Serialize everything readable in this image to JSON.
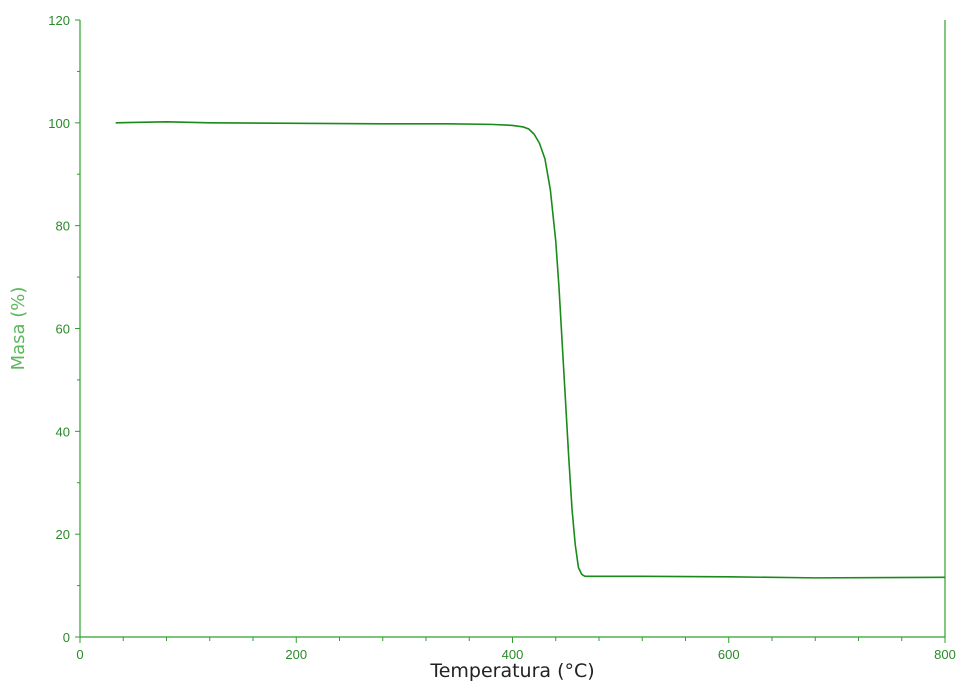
{
  "chart_data": {
    "type": "line",
    "title": "",
    "xlabel": "Temperatura (°C)",
    "ylabel": "Masa (%)",
    "xlim": [
      0,
      800
    ],
    "ylim": [
      0,
      120
    ],
    "x_ticks": [
      0,
      200,
      400,
      600,
      800
    ],
    "y_ticks": [
      0,
      20,
      40,
      60,
      80,
      100,
      120
    ],
    "grid": false,
    "legend": "none",
    "colors": {
      "line": "#1a8a1a",
      "axis": "#2ea02e",
      "tick_text": "#2a8a2a",
      "ylabel_text": "#5cb85c",
      "xlabel_text": "#222222"
    },
    "series": [
      {
        "x": [
          33,
          80,
          120,
          200,
          280,
          340,
          380,
          400,
          410,
          415,
          420,
          425,
          430,
          435,
          440,
          443,
          446,
          449,
          452,
          455,
          458,
          461,
          464,
          467,
          470,
          480,
          520,
          600,
          680,
          800
        ],
        "y": [
          100,
          100.2,
          100,
          99.9,
          99.8,
          99.8,
          99.7,
          99.5,
          99.2,
          98.8,
          97.8,
          96,
          93,
          87,
          77,
          68,
          57,
          46,
          35,
          25,
          18,
          13.5,
          12.2,
          11.8,
          11.8,
          11.8,
          11.8,
          11.7,
          11.5,
          11.6
        ]
      }
    ]
  }
}
